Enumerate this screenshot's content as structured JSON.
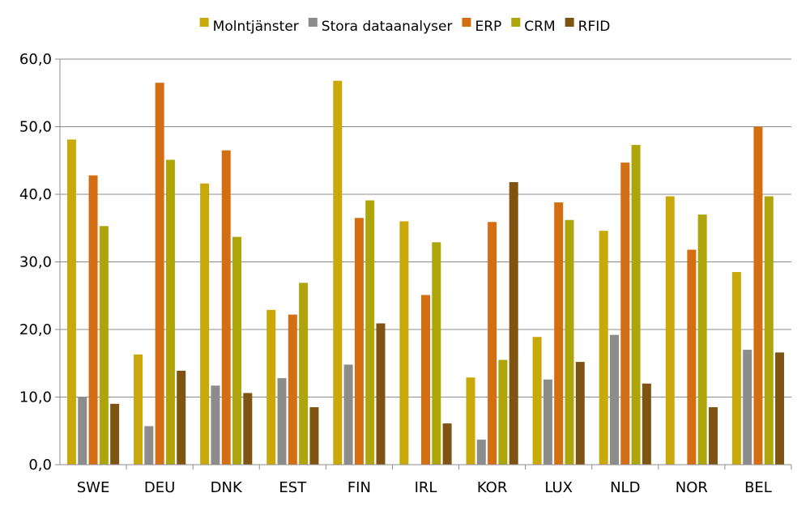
{
  "chart_data": {
    "type": "bar",
    "title": "",
    "xlabel": "",
    "ylabel": "",
    "ylim": [
      0,
      60
    ],
    "ytick_step": 10,
    "ytick_labels": [
      "0,0",
      "10,0",
      "20,0",
      "30,0",
      "40,0",
      "50,0",
      "60,0"
    ],
    "grid": true,
    "legend_position": "top",
    "categories": [
      "SWE",
      "DEU",
      "DNK",
      "EST",
      "FIN",
      "IRL",
      "KOR",
      "LUX",
      "NLD",
      "NOR",
      "BEL"
    ],
    "series": [
      {
        "name": "Molntjänster",
        "color": "#C9A90A",
        "values": [
          48.1,
          16.3,
          41.6,
          22.9,
          56.8,
          36.0,
          12.9,
          18.9,
          34.6,
          39.7,
          28.5
        ]
      },
      {
        "name": "Stora dataanalyser",
        "color": "#8C8C8C",
        "values": [
          10.0,
          5.7,
          11.7,
          12.8,
          14.8,
          null,
          3.7,
          12.6,
          19.2,
          null,
          17.0
        ]
      },
      {
        "name": "ERP",
        "color": "#D46E12",
        "values": [
          42.8,
          56.5,
          46.5,
          22.2,
          36.5,
          25.1,
          35.9,
          38.8,
          44.7,
          31.8,
          50.0
        ]
      },
      {
        "name": "CRM",
        "color": "#ADA50A",
        "values": [
          35.3,
          45.1,
          33.7,
          26.9,
          39.1,
          32.9,
          15.5,
          36.2,
          47.3,
          37.0,
          39.7
        ]
      },
      {
        "name": "RFID",
        "color": "#7F5412",
        "values": [
          9.0,
          13.9,
          10.6,
          8.5,
          20.9,
          6.1,
          41.8,
          15.2,
          12.0,
          8.5,
          16.6
        ]
      }
    ]
  }
}
